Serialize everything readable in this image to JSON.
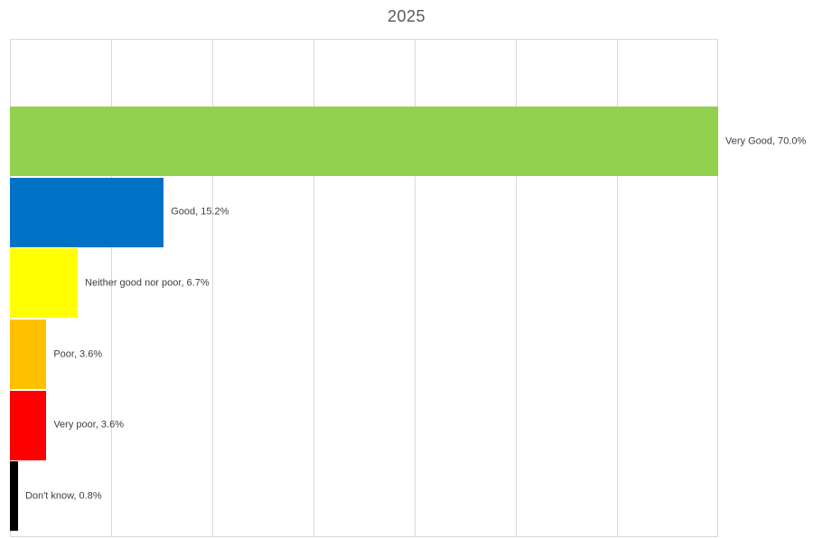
{
  "page": {
    "background": "#FFFFFF"
  },
  "chart_data": {
    "type": "bar",
    "orientation": "horizontal",
    "title": "2025",
    "categories": [
      "Very Good",
      "Good",
      "Neither good nor poor",
      "Poor",
      "Very poor",
      "Don't know"
    ],
    "values": [
      70.0,
      15.2,
      6.7,
      3.6,
      3.6,
      0.8
    ],
    "data_labels": [
      "Very Good, 70.0%",
      "Good, 15.2%",
      "Neither good nor poor, 6.7%",
      "Poor, 3.6%",
      "Very poor, 3.6%",
      "Don't know, 0.8%"
    ],
    "bar_colors": [
      "#92D050",
      "#0072C6",
      "#FFFF00",
      "#FFC000",
      "#FF0000",
      "#000000"
    ],
    "xlim": [
      0,
      70
    ],
    "gridline_interval": 10,
    "grid": true,
    "legend": "none",
    "axis_tick_labels_visible": false,
    "title_color": "#595959",
    "label_color": "#404040",
    "gridline_color": "#D9D9D9"
  }
}
